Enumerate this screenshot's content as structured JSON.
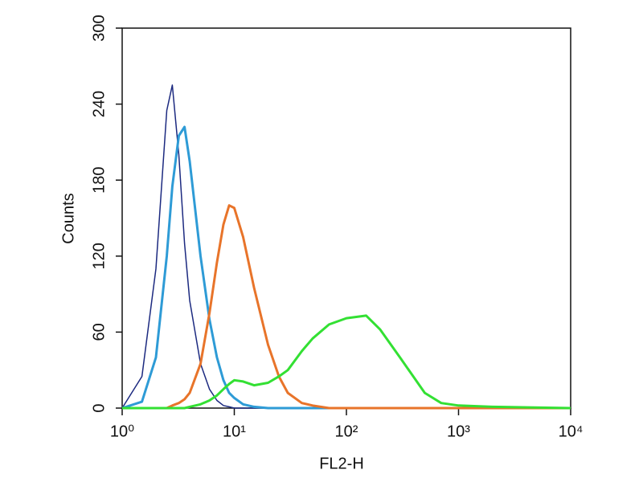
{
  "chart_data": {
    "type": "line",
    "x_label": "FL2-H",
    "y_label": "Counts",
    "x_scale": "log",
    "x": [
      1,
      1.5,
      2,
      2.5,
      2.8,
      3.2,
      3.6,
      4,
      5,
      6,
      7,
      8,
      9,
      10,
      12,
      15,
      20,
      25,
      30,
      40,
      50,
      70,
      100,
      150,
      200,
      300,
      500,
      700,
      1000,
      2000,
      10000
    ],
    "series": [
      {
        "color": "#1c2a80",
        "values": [
          0,
          25,
          110,
          235,
          255,
          200,
          130,
          85,
          35,
          15,
          6,
          2,
          1,
          0,
          0,
          0,
          0,
          0,
          0,
          0,
          0,
          0,
          0,
          0,
          0,
          0,
          0,
          0,
          0,
          0,
          0
        ]
      },
      {
        "color": "#2e9bd6",
        "values": [
          0,
          5,
          40,
          120,
          175,
          215,
          222,
          195,
          120,
          70,
          40,
          22,
          12,
          8,
          3,
          1,
          0,
          0,
          0,
          0,
          0,
          0,
          0,
          0,
          0,
          0,
          0,
          0,
          0,
          0,
          0
        ]
      },
      {
        "color": "#e8742a",
        "values": [
          0,
          0,
          0,
          0,
          2,
          4,
          7,
          12,
          35,
          75,
          115,
          145,
          160,
          158,
          135,
          95,
          50,
          25,
          12,
          4,
          2,
          0,
          0,
          0,
          0,
          0,
          0,
          0,
          0,
          0,
          0
        ]
      },
      {
        "color": "#33e033",
        "values": [
          0,
          0,
          0,
          0,
          0,
          0,
          0,
          1,
          3,
          6,
          10,
          15,
          19,
          22,
          21,
          18,
          20,
          25,
          30,
          45,
          55,
          66,
          71,
          73,
          62,
          40,
          12,
          4,
          2,
          1,
          0
        ]
      }
    ],
    "xlim": [
      1,
      10000
    ],
    "ylim": [
      0,
      300
    ],
    "xticks": [
      {
        "value": 1,
        "label": "10⁰"
      },
      {
        "value": 10,
        "label": "10¹"
      },
      {
        "value": 100,
        "label": "10²"
      },
      {
        "value": 1000,
        "label": "10³"
      },
      {
        "value": 10000,
        "label": "10⁴"
      }
    ],
    "yticks": [
      0,
      60,
      120,
      180,
      240,
      300
    ]
  }
}
